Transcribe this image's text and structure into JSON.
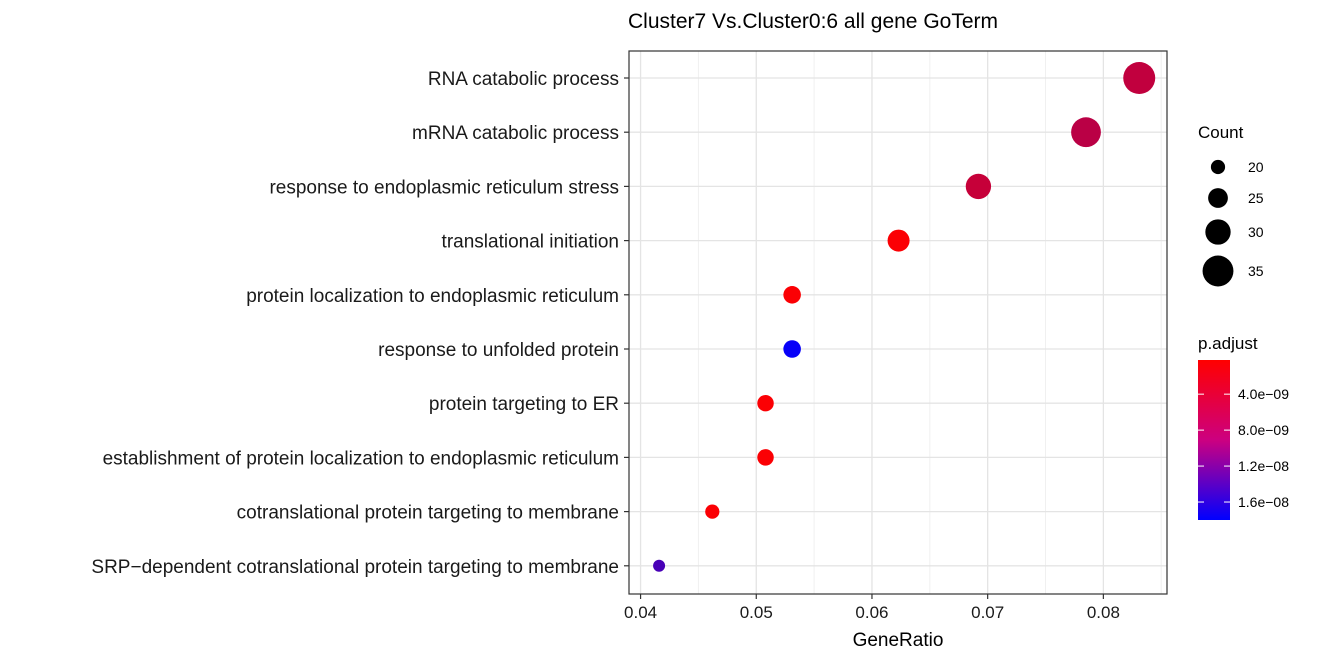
{
  "chart_data": {
    "type": "scatter",
    "title": "Cluster7 Vs.Cluster0:6 all gene GoTerm",
    "xlabel": "GeneRatio",
    "ylabel": "",
    "xlim": [
      0.039,
      0.0855
    ],
    "x_ticks": [
      0.04,
      0.05,
      0.06,
      0.07,
      0.08
    ],
    "x_tick_labels": [
      "0.04",
      "0.05",
      "0.06",
      "0.07",
      "0.08"
    ],
    "grid": true,
    "categories": [
      "RNA catabolic process",
      "mRNA catabolic process",
      "response to endoplasmic reticulum stress",
      "translational initiation",
      "protein localization to endoplasmic reticulum",
      "response to unfolded protein",
      "protein targeting to ER",
      "establishment of protein localization to endoplasmic reticulum",
      "cotranslational protein targeting to membrane",
      "SRP−dependent cotranslational protein targeting to membrane"
    ],
    "points": [
      {
        "term": "RNA catabolic process",
        "gene_ratio": 0.0831,
        "count": 36,
        "p_adjust": 4.5e-09
      },
      {
        "term": "mRNA catabolic process",
        "gene_ratio": 0.0785,
        "count": 34,
        "p_adjust": 5e-09
      },
      {
        "term": "response to endoplasmic reticulum stress",
        "gene_ratio": 0.0692,
        "count": 30,
        "p_adjust": 4.2e-09
      },
      {
        "term": "translational initiation",
        "gene_ratio": 0.0623,
        "count": 27,
        "p_adjust": 5e-10
      },
      {
        "term": "protein localization to endoplasmic reticulum",
        "gene_ratio": 0.0531,
        "count": 23,
        "p_adjust": 5e-10
      },
      {
        "term": "response to unfolded protein",
        "gene_ratio": 0.0531,
        "count": 23,
        "p_adjust": 1.75e-08
      },
      {
        "term": "protein targeting to ER",
        "gene_ratio": 0.0508,
        "count": 22,
        "p_adjust": 5e-10
      },
      {
        "term": "establishment of protein localization to endoplasmic reticulum",
        "gene_ratio": 0.0508,
        "count": 22,
        "p_adjust": 5e-10
      },
      {
        "term": "cotranslational protein targeting to membrane",
        "gene_ratio": 0.0462,
        "count": 20,
        "p_adjust": 5e-10
      },
      {
        "term": "SRP−dependent cotranslational protein targeting to membrane",
        "gene_ratio": 0.0416,
        "count": 18,
        "p_adjust": 1.3e-08
      }
    ],
    "size_legend": {
      "title": "Count",
      "values": [
        20,
        25,
        30,
        35
      ],
      "labels": [
        "20",
        "25",
        "30",
        "35"
      ]
    },
    "color_legend": {
      "title": "p.adjust",
      "low_color": "#ff0000",
      "high_color": "#0000ff",
      "range": [
        2e-10,
        1.8e-08
      ],
      "ticks": [
        4e-09,
        8e-09,
        1.2e-08,
        1.6e-08
      ],
      "tick_labels": [
        "4.0e−09",
        "8.0e−09",
        "1.2e−08",
        "1.6e−08"
      ]
    },
    "legend_position": "right"
  }
}
